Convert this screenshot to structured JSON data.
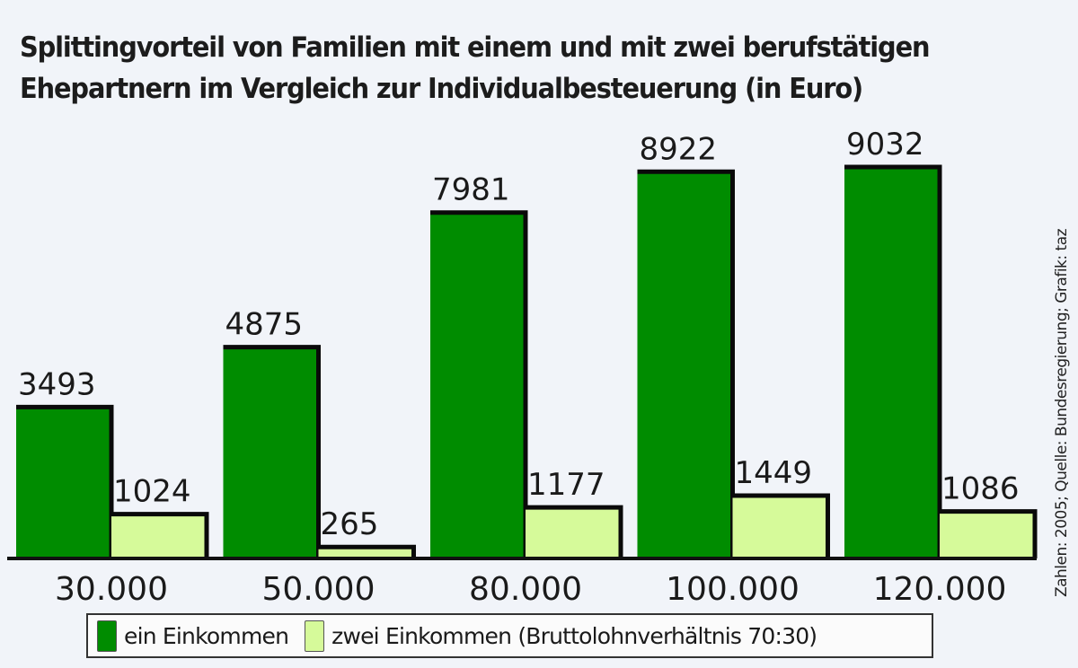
{
  "chart_data": {
    "type": "bar",
    "title": "Splittingvorteil von Familien mit einem und mit zwei berufstätigen Ehepartnern im Vergleich zur Individualbesteuerung (in Euro)",
    "title_lines": [
      "Splittingvorteil von Familien mit einem und mit zwei berufstätigen",
      "Ehepartnern im Vergleich zur Individualbesteuerung (in Euro)"
    ],
    "xlabel": "",
    "ylabel": "",
    "categories": [
      "30.000",
      "50.000",
      "80.000",
      "100.000",
      "120.000"
    ],
    "series": [
      {
        "name": "ein Einkommen",
        "color": "#008c00",
        "values": [
          3493,
          4875,
          7981,
          8922,
          9032
        ]
      },
      {
        "name": "zwei Einkommen (Bruttolohnverhältnis 70:30)",
        "color": "#d6fa9a",
        "values": [
          1024,
          265,
          1177,
          1449,
          1086
        ]
      }
    ],
    "ylim": [
      0,
      9032
    ],
    "grid": false,
    "legend_position": "bottom",
    "data_labels": true,
    "source": "Zahlen: 2005; Quelle: Bundesregierung; Grafik: taz"
  }
}
